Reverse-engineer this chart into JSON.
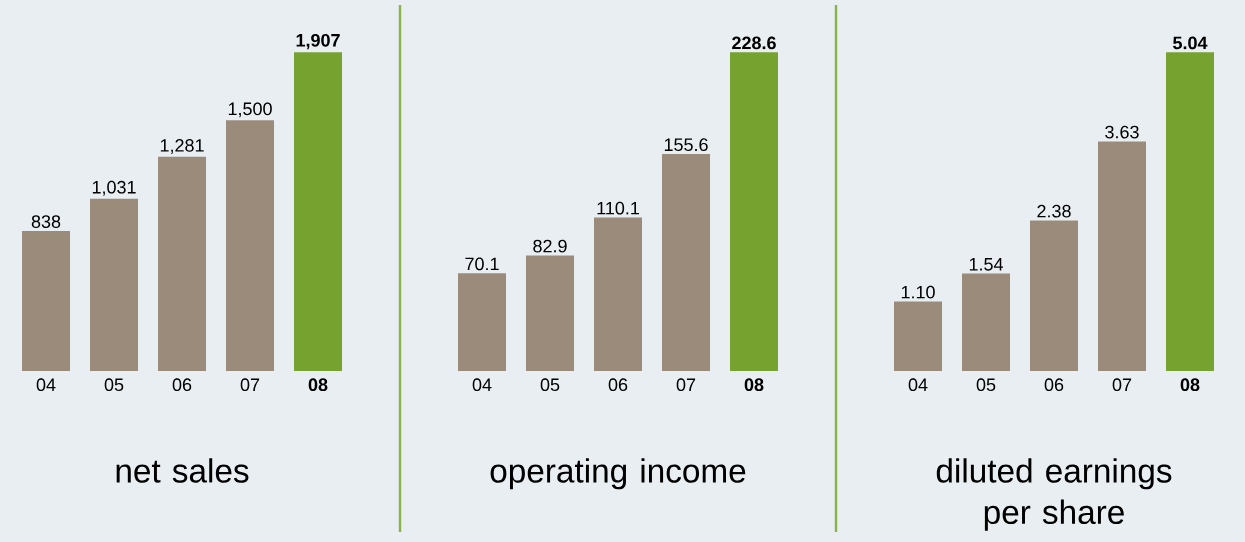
{
  "chart_data": [
    {
      "type": "bar",
      "title": "net sales",
      "categories": [
        "04",
        "05",
        "06",
        "07",
        "08"
      ],
      "values": [
        838,
        1031,
        1281,
        1500,
        1907
      ],
      "value_labels": [
        "838",
        "1,031",
        "1,281",
        "1,500",
        "1,907"
      ],
      "colors": [
        "#9b8b7b",
        "#9b8b7b",
        "#9b8b7b",
        "#9b8b7b",
        "#76a22f"
      ]
    },
    {
      "type": "bar",
      "title": "operating income",
      "categories": [
        "04",
        "05",
        "06",
        "07",
        "08"
      ],
      "values": [
        70.1,
        82.9,
        110.1,
        155.6,
        228.6
      ],
      "value_labels": [
        "70.1",
        "82.9",
        "110.1",
        "155.6",
        "228.6"
      ],
      "colors": [
        "#9b8b7b",
        "#9b8b7b",
        "#9b8b7b",
        "#9b8b7b",
        "#76a22f"
      ]
    },
    {
      "type": "bar",
      "title": "diluted earnings per share",
      "categories": [
        "04",
        "05",
        "06",
        "07",
        "08"
      ],
      "values": [
        1.1,
        1.54,
        2.38,
        3.63,
        5.04
      ],
      "value_labels": [
        "1.10",
        "1.54",
        "2.38",
        "3.63",
        "5.04"
      ],
      "colors": [
        "#9b8b7b",
        "#9b8b7b",
        "#9b8b7b",
        "#9b8b7b",
        "#76a22f"
      ]
    }
  ]
}
